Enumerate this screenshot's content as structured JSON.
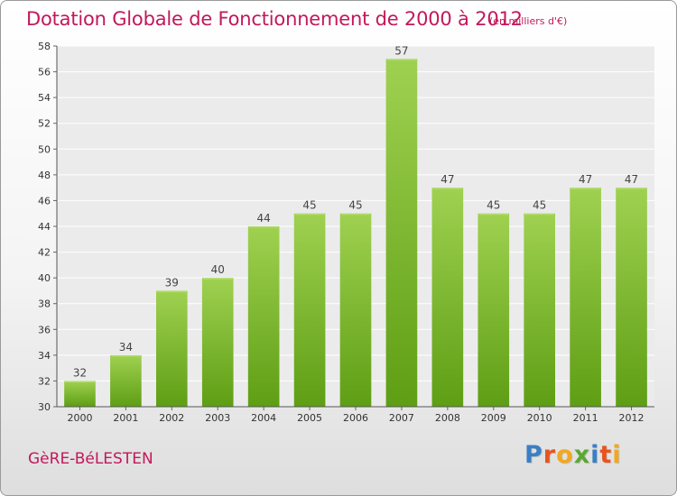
{
  "header": {
    "title": "Dotation Globale de Fonctionnement de 2000 à 2012",
    "subtitle": "(en milliers d'€)"
  },
  "footer": {
    "commune": "GèRE-BéLESTEN",
    "logo_letters": [
      "P",
      "r",
      "o",
      "x",
      "i",
      "t",
      "i"
    ]
  },
  "colors": {
    "bar_light": "#9fd150",
    "bar_dark": "#5e9e14",
    "title": "#c2185b",
    "logo": [
      "#3a7fc4",
      "#e8541e",
      "#f2a81d",
      "#5aa832",
      "#3a7fc4",
      "#e8541e",
      "#f2a81d"
    ]
  },
  "chart_data": {
    "type": "bar",
    "title": "Dotation Globale de Fonctionnement de 2000 à 2012",
    "subtitle": "(en milliers d'€)",
    "categories": [
      "2000",
      "2001",
      "2002",
      "2003",
      "2004",
      "2005",
      "2006",
      "2007",
      "2008",
      "2009",
      "2010",
      "2011",
      "2012"
    ],
    "values": [
      32,
      34,
      39,
      40,
      44,
      45,
      45,
      57,
      47,
      45,
      45,
      47,
      47
    ],
    "ylim": [
      30,
      58
    ],
    "yticks": [
      30,
      32,
      34,
      36,
      38,
      40,
      42,
      44,
      46,
      48,
      50,
      52,
      54,
      56,
      58
    ],
    "grid": true,
    "legend": "none",
    "data_labels": true
  }
}
